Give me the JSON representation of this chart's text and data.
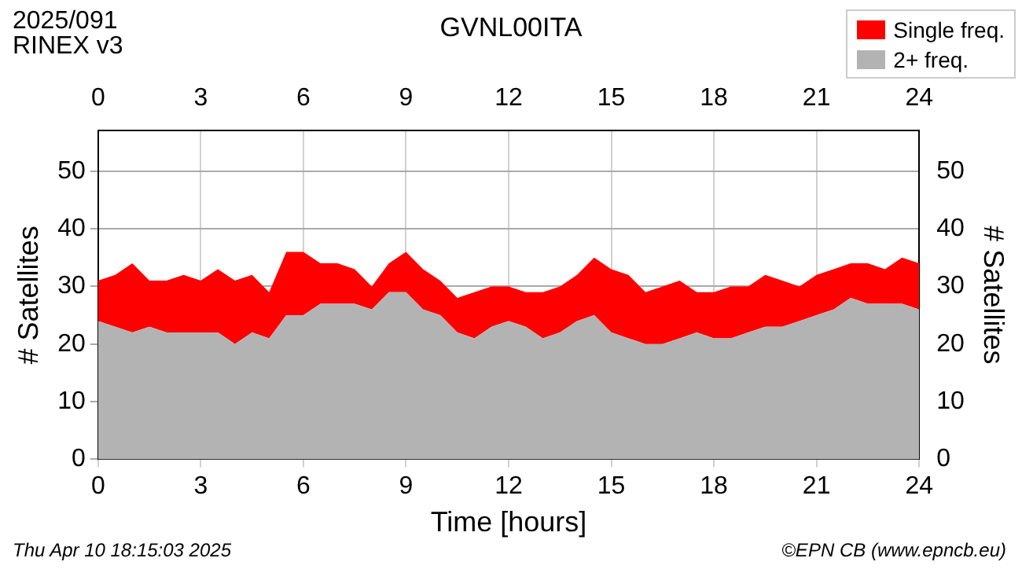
{
  "chart_data": {
    "type": "area",
    "title": "GVNL00ITA",
    "xlabel": "Time [hours]",
    "ylabel": "# Satellites",
    "y2label": "# Satellites",
    "annotations": [
      "2025/091",
      "RINEX v3",
      "Thu Apr 10 18:15:03 2025",
      "©EPN CB (www.epncb.eu)"
    ],
    "x": [
      0,
      0.5,
      1,
      1.5,
      2,
      2.5,
      3,
      3.5,
      4,
      4.5,
      5,
      5.5,
      6,
      6.5,
      7,
      7.5,
      8,
      8.5,
      9,
      9.5,
      10,
      10.5,
      11,
      11.5,
      12,
      12.5,
      13,
      13.5,
      14,
      14.5,
      15,
      15.5,
      16,
      16.5,
      17,
      17.5,
      18,
      18.5,
      19,
      19.5,
      20,
      20.5,
      21,
      21.5,
      22,
      22.5,
      23,
      23.5,
      24
    ],
    "series": [
      {
        "name": "2+ freq.",
        "color": "#b3b3b3",
        "values": [
          24,
          23,
          22,
          23,
          22,
          22,
          22,
          22,
          20,
          22,
          21,
          25,
          25,
          27,
          27,
          27,
          26,
          29,
          29,
          26,
          25,
          22,
          21,
          23,
          24,
          23,
          21,
          22,
          24,
          25,
          22,
          21,
          20,
          20,
          21,
          22,
          21,
          21,
          22,
          23,
          23,
          24,
          25,
          26,
          28,
          27,
          27,
          27,
          26
        ]
      },
      {
        "name": "Single freq.",
        "color": "#ff0000",
        "values": [
          7,
          9,
          12,
          8,
          9,
          10,
          9,
          11,
          11,
          10,
          8,
          11,
          11,
          7,
          7,
          6,
          4,
          5,
          7,
          7,
          6,
          6,
          8,
          7,
          6,
          6,
          8,
          8,
          8,
          10,
          11,
          11,
          9,
          10,
          10,
          7,
          8,
          9,
          8,
          9,
          8,
          6,
          7,
          7,
          6,
          7,
          6,
          8,
          8
        ]
      }
    ],
    "stacked": true,
    "xlim": [
      0,
      24
    ],
    "xticks": [
      0,
      3,
      6,
      9,
      12,
      15,
      18,
      21,
      24
    ],
    "x2lim": [
      0,
      24
    ],
    "x2ticks": [
      0,
      3,
      6,
      9,
      12,
      15,
      18,
      21,
      24
    ],
    "ylim": [
      0,
      57
    ],
    "yticks": [
      0,
      10,
      20,
      30,
      40,
      50
    ],
    "y2lim": [
      0,
      57
    ],
    "y2ticks": [
      0,
      10,
      20,
      30,
      40,
      50
    ],
    "grid": true,
    "legend": "top right",
    "marker": "none"
  }
}
